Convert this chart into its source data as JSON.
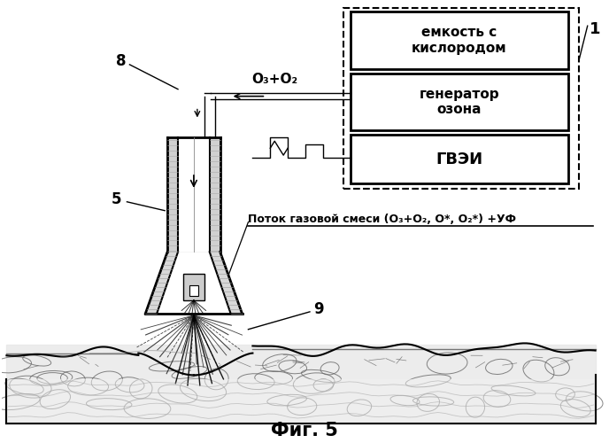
{
  "background_color": "#ffffff",
  "title": "Фиг. 5",
  "box1_label": "емкость с\nкислородом",
  "box2_label": "генератор\nозона",
  "box3_label": "ГВЭИ",
  "outer_box_label": "1",
  "label_8": "8",
  "label_5": "5",
  "label_9": "9",
  "gas_flow_label": "Поток газовой смеси (O₃+O₂, O*, O₂*) +УФ",
  "ozone_label": "O₃+O₂"
}
